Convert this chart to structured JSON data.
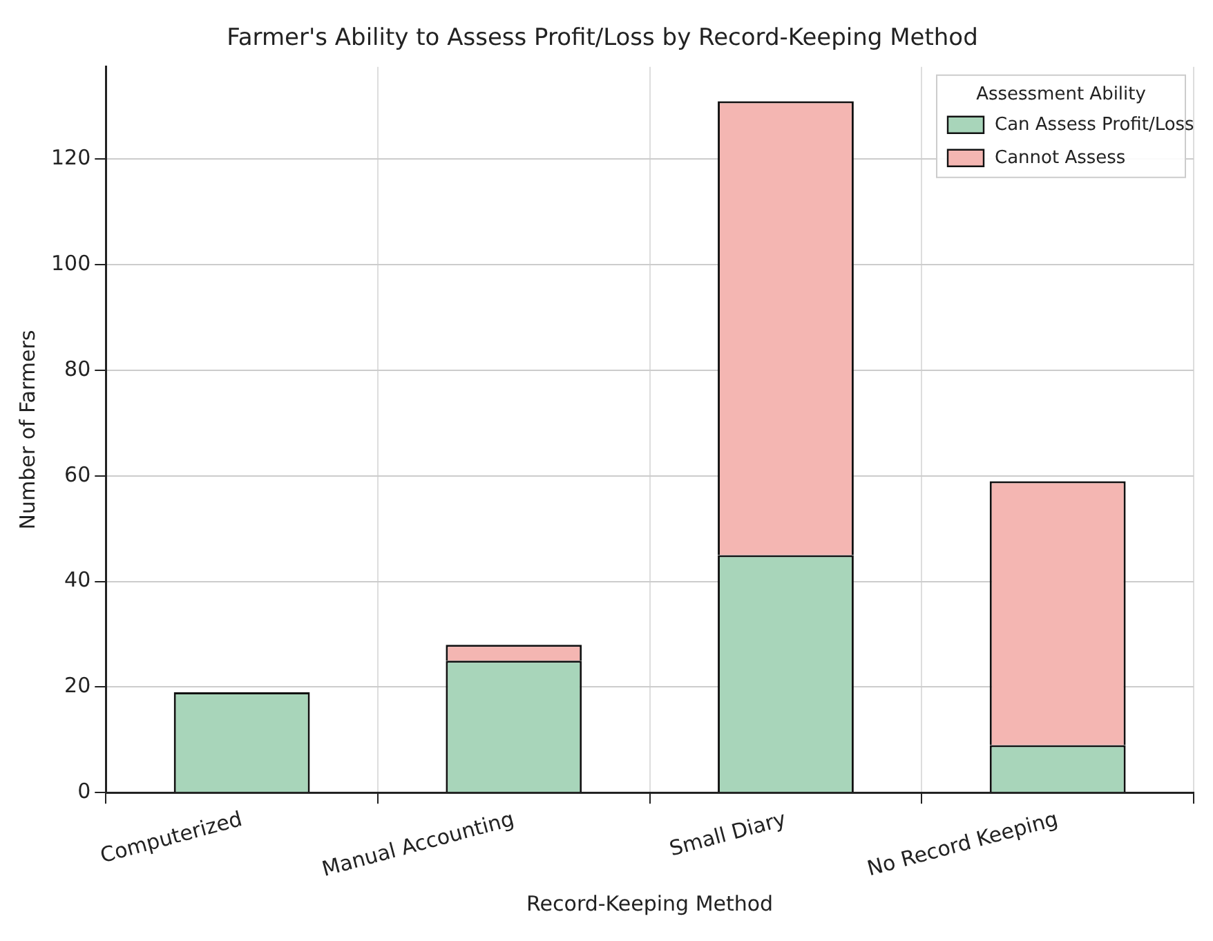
{
  "chart_data": {
    "type": "bar",
    "title": "Farmer's Ability to Assess Profit/Loss by Record-Keeping Method",
    "xlabel": "Record-Keeping Method",
    "ylabel": "Number of Farmers",
    "legend_title": "Assessment Ability",
    "categories": [
      "Computerized",
      "Manual Accounting",
      "Small Diary",
      "No Record Keeping"
    ],
    "series": [
      {
        "name": "Can Assess Profit/Loss",
        "color": "#a8d5ba",
        "values": [
          19,
          25,
          45,
          9
        ]
      },
      {
        "name": "Cannot Assess",
        "color": "#f4b6b2",
        "values": [
          0,
          3,
          86,
          50
        ]
      }
    ],
    "stacked": true,
    "ylim": [
      0,
      137.5
    ],
    "yticks": [
      0,
      20,
      40,
      60,
      80,
      100,
      120
    ],
    "grid": true,
    "legend": "top right"
  }
}
